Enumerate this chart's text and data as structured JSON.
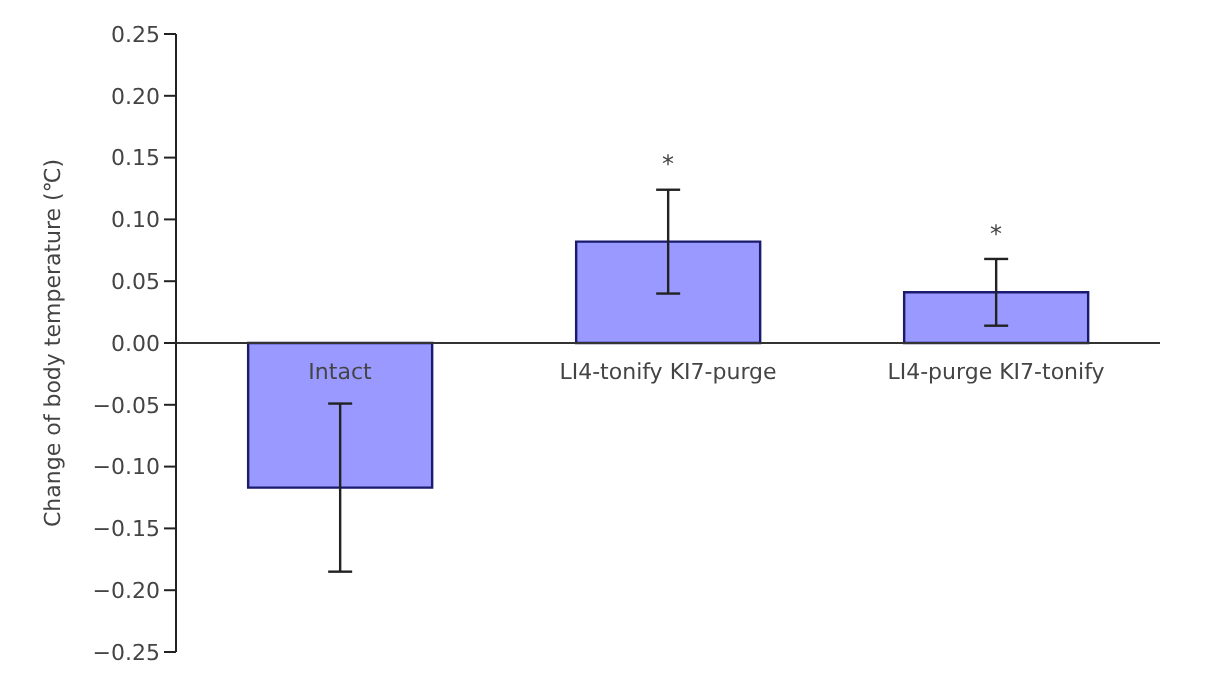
{
  "chart_data": {
    "type": "bar",
    "ylabel": "Change of body temperature (℃)",
    "categories": [
      "Intact",
      "LI4-tonify KI7-purge",
      "LI4-purge KI7-tonify"
    ],
    "values": [
      -0.117,
      0.082,
      0.041
    ],
    "errors": [
      0.068,
      0.042,
      0.027
    ],
    "color": "#9999ff",
    "ylim": [
      -0.25,
      0.25
    ],
    "yticks": [
      {
        "value": -0.25,
        "label": "−0.25"
      },
      {
        "value": -0.2,
        "label": "−0.20"
      },
      {
        "value": -0.15,
        "label": "−0.15"
      },
      {
        "value": -0.1,
        "label": "−0.10"
      },
      {
        "value": -0.05,
        "label": "−0.05"
      },
      {
        "value": 0,
        "label": "0.00"
      },
      {
        "value": 0.05,
        "label": "0.05"
      },
      {
        "value": 0.1,
        "label": "0.10"
      },
      {
        "value": 0.15,
        "label": "0.15"
      },
      {
        "value": 0.2,
        "label": "0.20"
      },
      {
        "value": 0.25,
        "label": "0.25"
      }
    ],
    "annotations": [
      {
        "text": "*",
        "x": "LI4-tonify KI7-purge",
        "y": 0.13
      },
      {
        "text": "*",
        "x": "LI4-purge KI7-tonify",
        "y": 0.074
      }
    ]
  }
}
